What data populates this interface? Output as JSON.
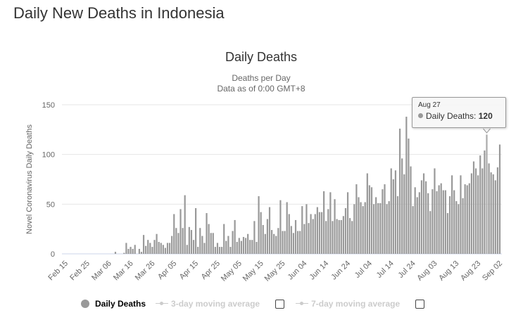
{
  "page": {
    "title": "Daily New Deaths in Indonesia"
  },
  "chart_data": {
    "type": "bar",
    "title": "Daily Deaths",
    "subtitle": [
      "Deaths per Day",
      "Data as of 0:00 GMT+8"
    ],
    "xlabel": "",
    "ylabel": "Novel Coronavirus Daily Deaths",
    "xlim": [
      "Feb 15",
      "Sep 02"
    ],
    "x_tick_labels": [
      "Feb 15",
      "Feb 25",
      "Mar 06",
      "Mar 16",
      "Mar 26",
      "Apr 05",
      "Apr 15",
      "Apr 25",
      "May 05",
      "May 15",
      "May 25",
      "Jun 04",
      "Jun 14",
      "Jun 24",
      "Jul 04",
      "Jul 14",
      "Jul 24",
      "Aug 03",
      "Aug 13",
      "Aug 23",
      "Sep 02"
    ],
    "y_ticks": [
      0,
      50,
      100,
      150
    ],
    "ylim": [
      0,
      150
    ],
    "grid": true,
    "legend_position": "bottom",
    "series": [
      {
        "name": "Daily Deaths",
        "color": "#999999",
        "values": [
          0,
          0,
          0,
          0,
          0,
          0,
          0,
          0,
          0,
          0,
          0,
          0,
          0,
          0,
          0,
          0,
          0,
          0,
          0,
          0,
          0,
          0,
          0,
          2,
          0,
          0,
          0,
          1,
          11,
          5,
          7,
          5,
          9,
          0,
          5,
          2,
          19,
          8,
          14,
          11,
          7,
          14,
          20,
          12,
          11,
          9,
          6,
          11,
          11,
          18,
          40,
          26,
          21,
          45,
          26,
          59,
          9,
          27,
          24,
          14,
          46,
          7,
          26,
          18,
          11,
          41,
          30,
          21,
          21,
          7,
          11,
          7,
          7,
          30,
          13,
          18,
          7,
          23,
          34,
          12,
          16,
          13,
          17,
          16,
          20,
          14,
          14,
          33,
          12,
          58,
          42,
          29,
          20,
          35,
          47,
          24,
          20,
          18,
          26,
          54,
          23,
          23,
          52,
          40,
          28,
          21,
          34,
          23,
          23,
          48,
          30,
          50,
          31,
          40,
          35,
          40,
          47,
          42,
          42,
          63,
          33,
          45,
          62,
          33,
          55,
          35,
          34,
          34,
          38,
          46,
          62,
          36,
          33,
          50,
          70,
          57,
          52,
          48,
          52,
          81,
          69,
          67,
          50,
          57,
          51,
          51,
          65,
          70,
          50,
          53,
          86,
          75,
          84,
          58,
          126,
          96,
          80,
          138,
          116,
          88,
          48,
          67,
          57,
          62,
          74,
          81,
          73,
          61,
          43,
          65,
          86,
          63,
          69,
          71,
          64,
          64,
          41,
          58,
          79,
          64,
          53,
          50,
          79,
          56,
          70,
          69,
          71,
          81,
          93,
          86,
          79,
          99,
          86,
          104,
          120,
          91,
          82,
          80,
          74,
          87,
          110
        ]
      },
      {
        "name": "3-day moving average",
        "color": "#cccccc",
        "visible": false,
        "checked": false
      },
      {
        "name": "7-day moving average",
        "color": "#cccccc",
        "visible": false,
        "checked": false
      }
    ],
    "tooltip": {
      "date": "Aug 27",
      "series": "Daily Deaths",
      "sep": ":",
      "value": "120"
    }
  }
}
